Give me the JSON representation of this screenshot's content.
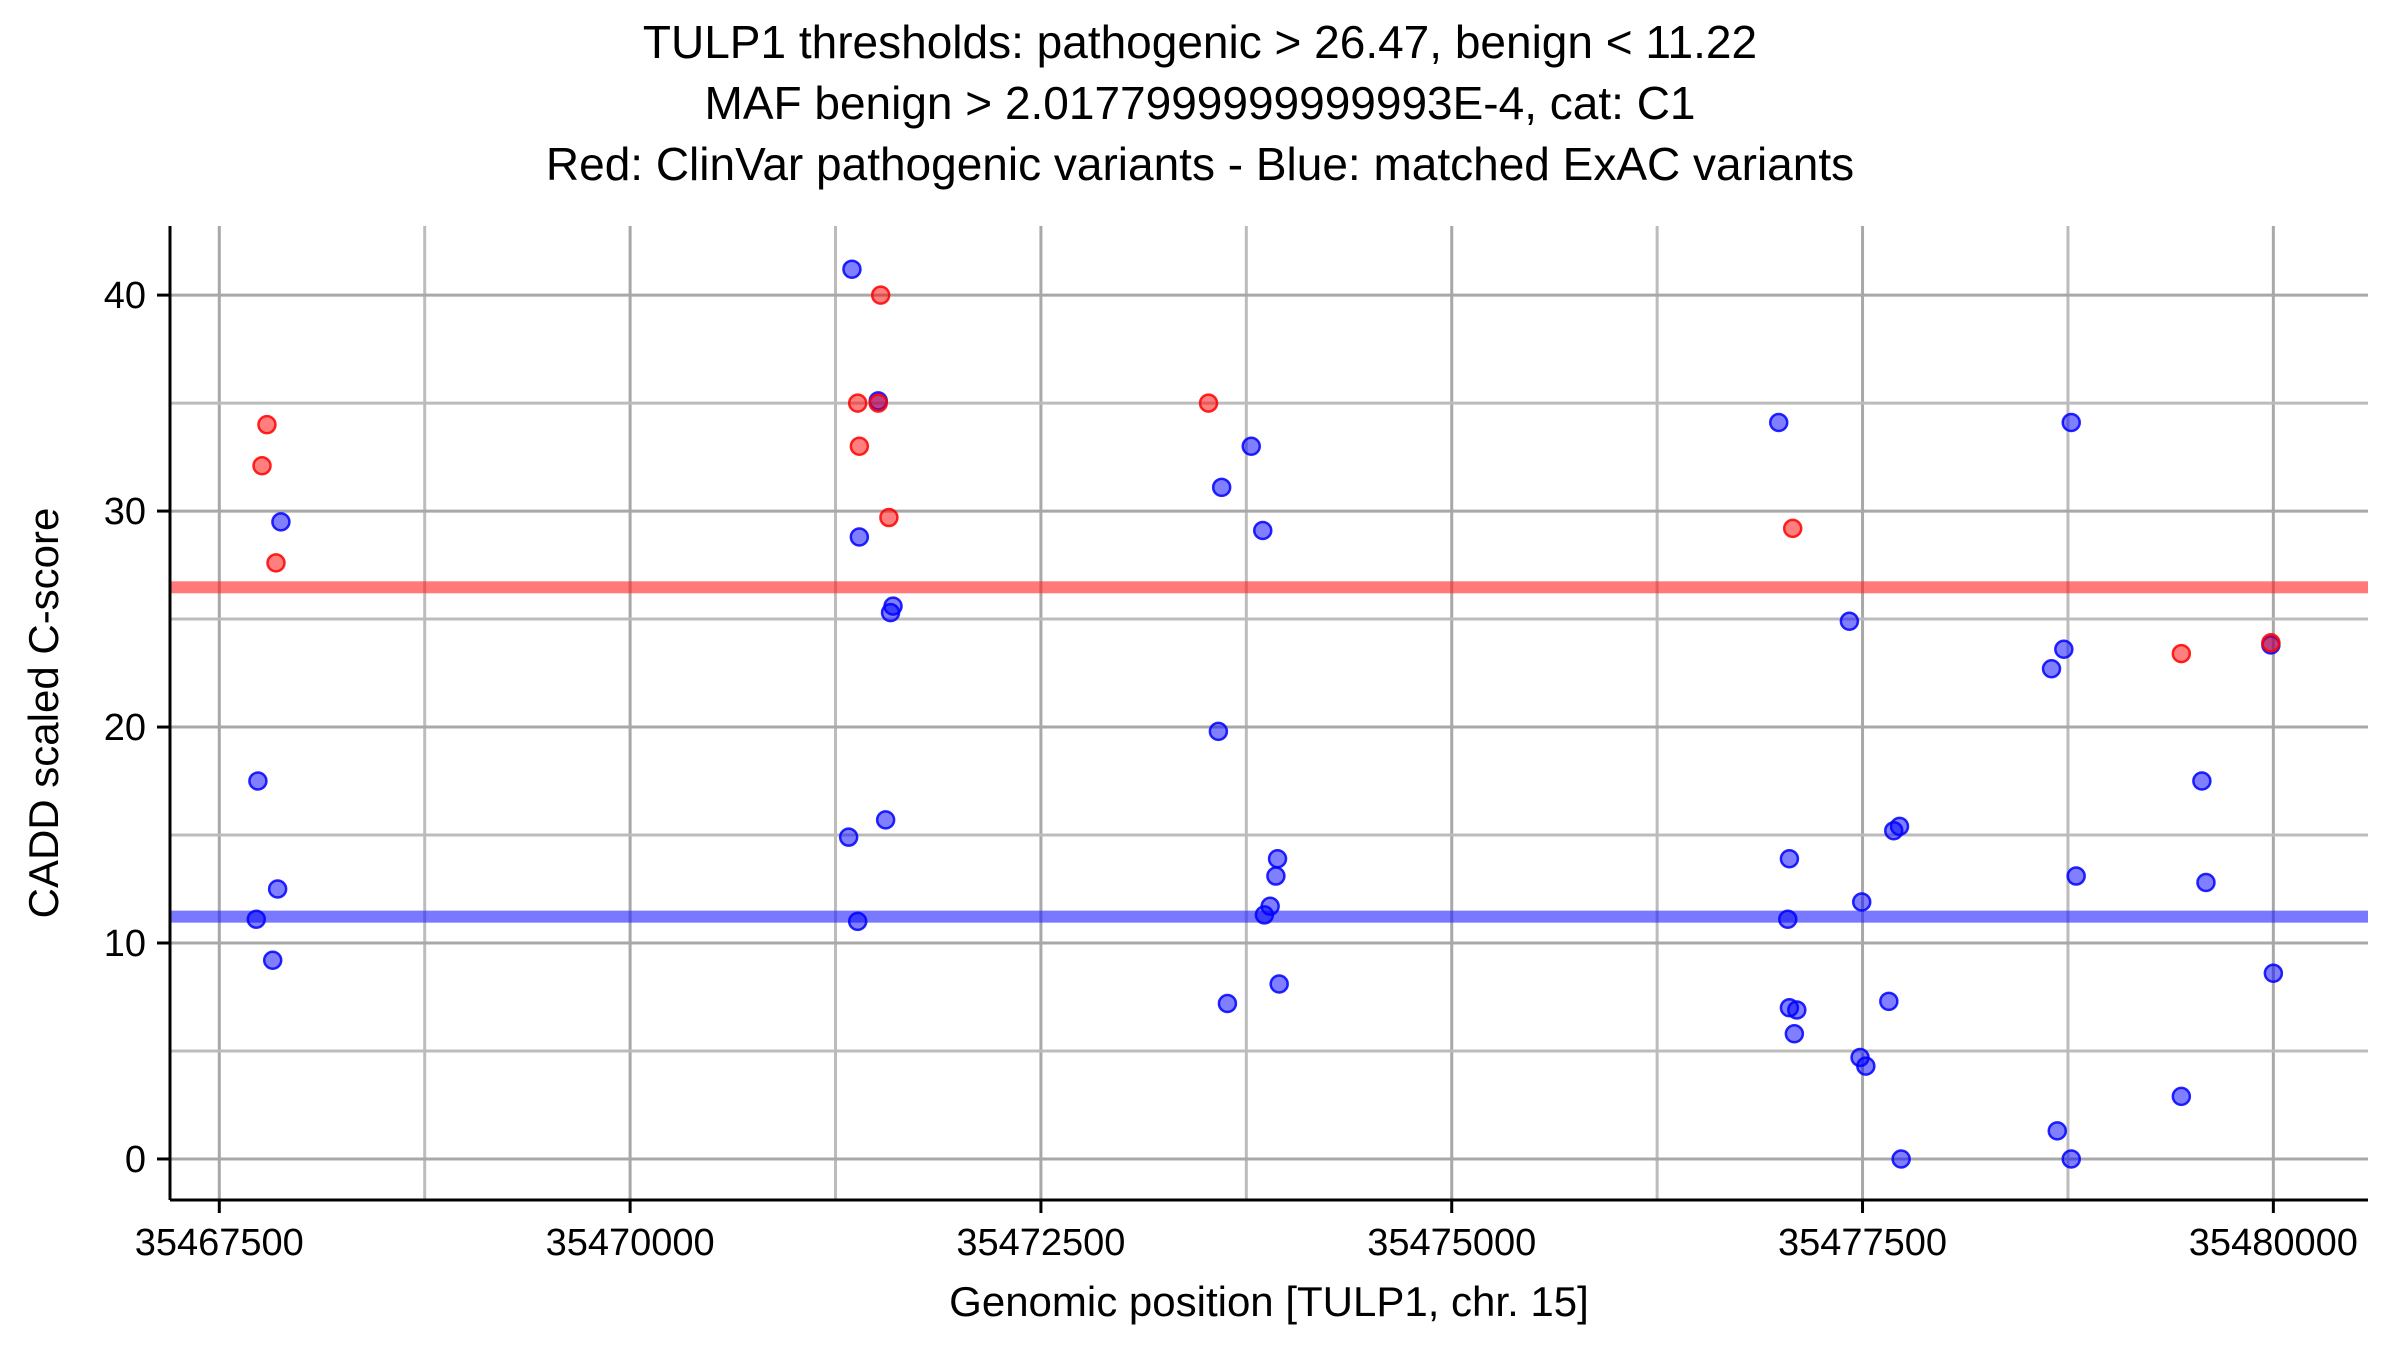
{
  "page": {
    "background": "#ffffff"
  },
  "chart_data": {
    "type": "scatter",
    "title_lines": [
      "TULP1 thresholds: pathogenic > 26.47, benign < 11.22",
      "MAF benign > 2.0177999999999993E-4, cat: C1",
      "Red: ClinVar pathogenic variants - Blue: matched ExAC variants"
    ],
    "gene": "TULP1",
    "category": "C1",
    "maf_benign": "2.0177999999999993E-4",
    "xlabel": "Genomic position [TULP1, chr. 15]",
    "ylabel": "CADD scaled C-score",
    "xlim": [
      35467200,
      35480576
    ],
    "ylim": [
      -1.9,
      43.2
    ],
    "x_ticks": [
      35467500,
      35470000,
      35472500,
      35475000,
      35477500,
      35480000
    ],
    "x_tick_labels": [
      "35467500",
      "35470000",
      "35472500",
      "35475000",
      "35477500",
      "35480000"
    ],
    "x_minor_gridlines": [
      35468750,
      35471250,
      35473750,
      35476250,
      35478750
    ],
    "y_ticks": [
      0,
      10,
      20,
      30,
      40
    ],
    "y_tick_labels": [
      "0",
      "10",
      "20",
      "30",
      "40"
    ],
    "y_minor_gridlines": [
      5,
      15,
      25,
      35
    ],
    "grid": true,
    "legend_position": "none",
    "colors": {
      "pathogenic_point": "#ff0000",
      "benign_point": "#0000ff",
      "pathogenic_band": "#ff2020",
      "benign_band": "#2020ff",
      "gridline_major": "#a8a8a8",
      "gridline_minor": "#bcbcbc",
      "axis": "#000000"
    },
    "thresholds": {
      "pathogenic": {
        "value": 26.47,
        "label": "pathogenic > 26.47"
      },
      "benign": {
        "value": 11.22,
        "label": "benign < 11.22"
      }
    },
    "series": [
      {
        "name": "ClinVar pathogenic variants",
        "color_key": "pathogenic_point",
        "points": [
          [
            35467790,
            34.0
          ],
          [
            35467760,
            32.1
          ],
          [
            35467845,
            27.6
          ],
          [
            35471385,
            35.0
          ],
          [
            35471510,
            35.0
          ],
          [
            35471525,
            40.0
          ],
          [
            35471395,
            33.0
          ],
          [
            35471575,
            29.7
          ],
          [
            35473520,
            35.0
          ],
          [
            35477075,
            29.2
          ],
          [
            35479440,
            23.4
          ],
          [
            35479985,
            23.9
          ]
        ]
      },
      {
        "name": "matched ExAC variants",
        "color_key": "benign_point",
        "points": [
          [
            35467875,
            29.5
          ],
          [
            35467735,
            17.5
          ],
          [
            35467855,
            12.5
          ],
          [
            35467725,
            11.1
          ],
          [
            35467825,
            9.2
          ],
          [
            35471350,
            41.2
          ],
          [
            35471510,
            35.1
          ],
          [
            35471395,
            28.8
          ],
          [
            35471600,
            25.6
          ],
          [
            35471585,
            25.3
          ],
          [
            35471555,
            15.7
          ],
          [
            35471330,
            14.9
          ],
          [
            35471385,
            11.0
          ],
          [
            35473780,
            33.0
          ],
          [
            35473600,
            31.1
          ],
          [
            35473850,
            29.1
          ],
          [
            35473580,
            19.8
          ],
          [
            35473940,
            13.9
          ],
          [
            35473930,
            13.1
          ],
          [
            35473895,
            11.7
          ],
          [
            35473860,
            11.3
          ],
          [
            35473950,
            8.1
          ],
          [
            35473635,
            7.2
          ],
          [
            35476990,
            34.1
          ],
          [
            35477055,
            13.9
          ],
          [
            35477045,
            11.1
          ],
          [
            35477055,
            7.0
          ],
          [
            35477100,
            6.9
          ],
          [
            35477085,
            5.8
          ],
          [
            35477420,
            24.9
          ],
          [
            35477495,
            11.9
          ],
          [
            35477485,
            4.7
          ],
          [
            35477520,
            4.3
          ],
          [
            35477725,
            15.4
          ],
          [
            35477690,
            15.2
          ],
          [
            35477660,
            7.3
          ],
          [
            35477735,
            0.0
          ],
          [
            35478650,
            22.7
          ],
          [
            35478725,
            23.6
          ],
          [
            35478770,
            34.1
          ],
          [
            35478800,
            13.1
          ],
          [
            35478685,
            1.3
          ],
          [
            35478770,
            0.0
          ],
          [
            35479440,
            2.9
          ],
          [
            35479565,
            17.5
          ],
          [
            35479590,
            12.8
          ],
          [
            35479985,
            23.8
          ],
          [
            35480000,
            8.6
          ]
        ]
      }
    ]
  }
}
